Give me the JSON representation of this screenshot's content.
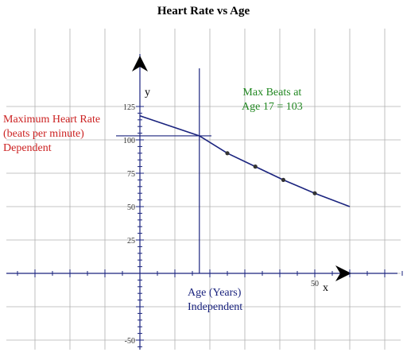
{
  "chart_data": {
    "type": "line",
    "title": "Heart Rate vs Age",
    "xlabel": "x",
    "ylabel": "y",
    "x_axis_caption": [
      "Age (Years)",
      "Independent"
    ],
    "y_axis_caption": [
      "Maximum Heart Rate",
      "(beats per minute)",
      "Dependent"
    ],
    "xlim": [
      -35,
      75
    ],
    "ylim": [
      -60,
      130
    ],
    "x_ticks_labeled": [
      50
    ],
    "y_ticks_labeled": [
      125,
      100,
      75,
      50,
      25,
      -50
    ],
    "grid": true,
    "series": [
      {
        "points": [
          {
            "x": 0,
            "y": 118
          },
          {
            "x": 17,
            "y": 103
          },
          {
            "x": 25,
            "y": 90
          },
          {
            "x": 33,
            "y": 80
          },
          {
            "x": 41,
            "y": 70
          },
          {
            "x": 50,
            "y": 60
          },
          {
            "x": 60,
            "y": 50
          }
        ]
      }
    ],
    "markers": [
      {
        "x": 25,
        "y": 90
      },
      {
        "x": 33,
        "y": 80
      },
      {
        "x": 41,
        "y": 70
      },
      {
        "x": 50,
        "y": 60
      }
    ],
    "crosshair": {
      "x": 17,
      "y": 103
    },
    "annotation": [
      "Max Beats at",
      "Age 17 = 103"
    ]
  },
  "colors": {
    "line": "#1a237e",
    "axis": "#1a237e",
    "grid": "#b0b0b0",
    "ylabel": "#cc2222",
    "annotation": "#228822",
    "xlabel": "#1a237e"
  }
}
